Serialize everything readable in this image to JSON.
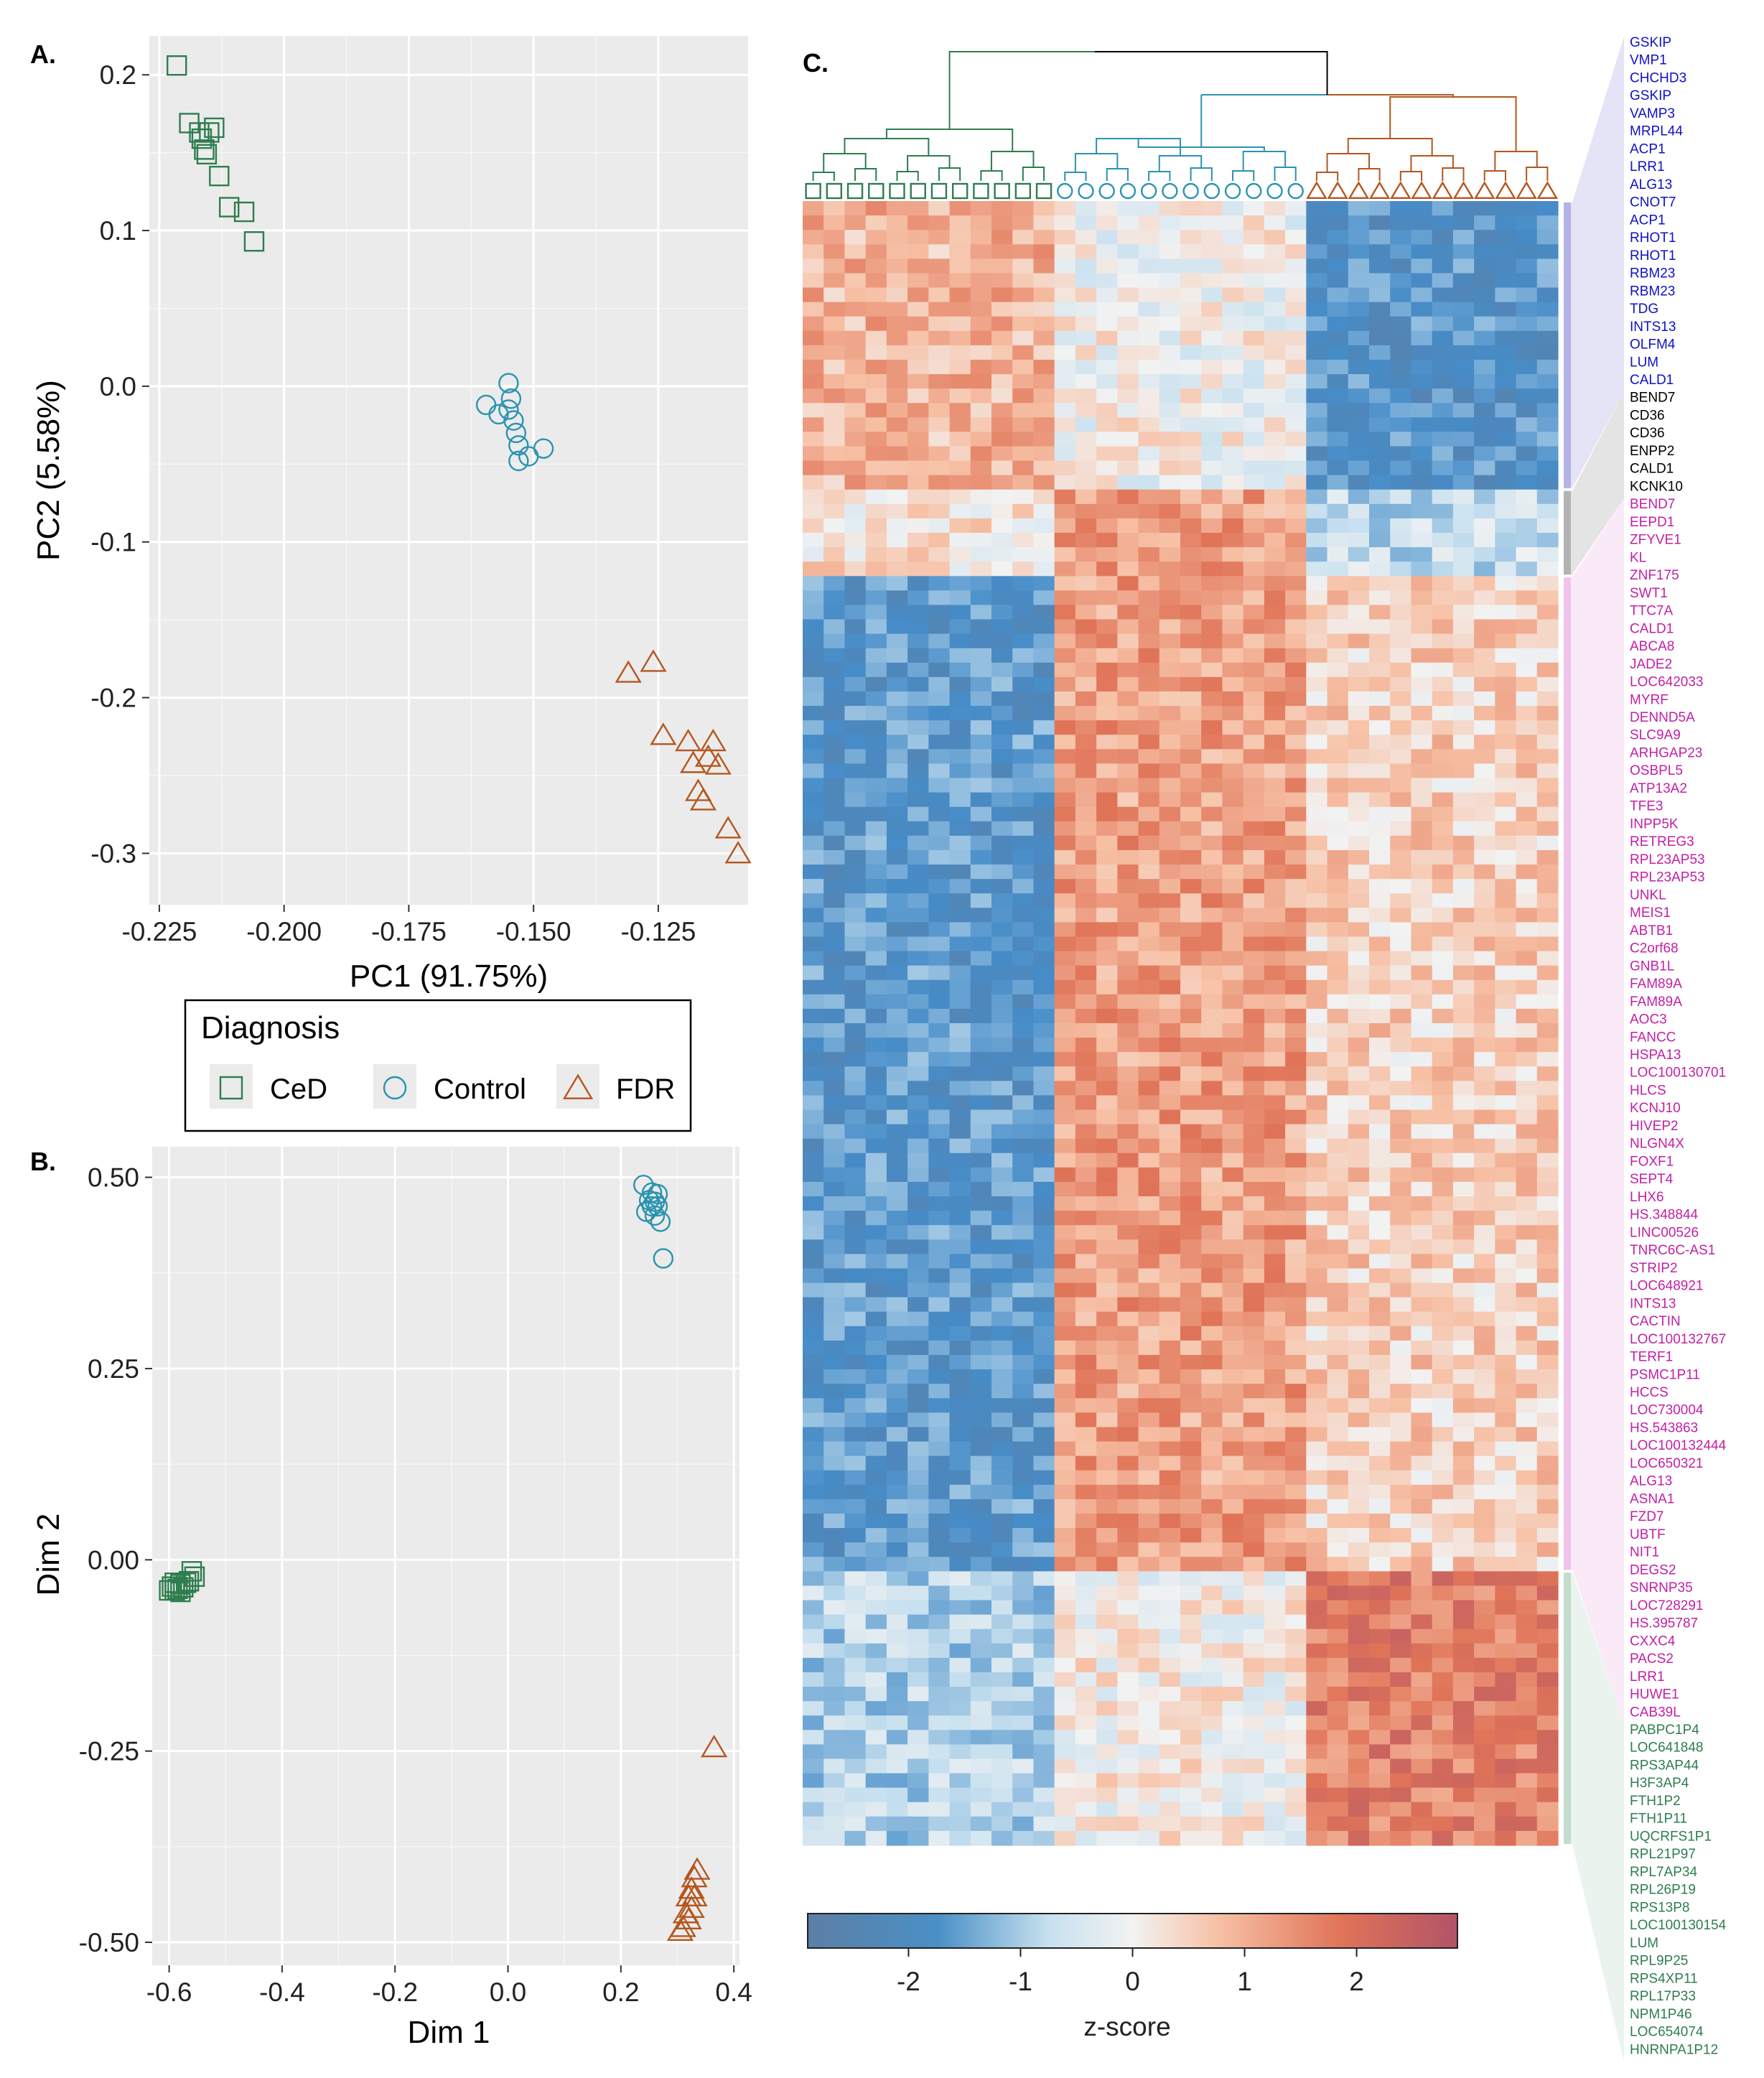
{
  "panels": {
    "A": "A.",
    "B": "B.",
    "C": "C."
  },
  "legend": {
    "title": "Diagnosis",
    "items": [
      {
        "label": "CeD",
        "shape": "square",
        "color": "#2e7d4f"
      },
      {
        "label": "Control",
        "shape": "circle",
        "color": "#2a93b0"
      },
      {
        "label": "FDR",
        "shape": "triangle",
        "color": "#b5561e"
      }
    ]
  },
  "colors": {
    "CeD": "#2e7d4f",
    "Control": "#2a93b0",
    "FDR": "#b5561e",
    "panel_bg": "#ebebeb",
    "grid": "#ffffff"
  },
  "chart_data": [
    {
      "type": "scatter",
      "panel": "A.",
      "xlabel": "PC1 (91.75%)",
      "ylabel": "PC2 (5.58%)",
      "xlim": [
        -0.227,
        -0.107
      ],
      "ylim": [
        -0.333,
        0.225
      ],
      "xticks": [
        -0.225,
        -0.2,
        -0.175,
        -0.15,
        -0.125
      ],
      "xtick_labels": [
        "-0.225",
        "-0.200",
        "-0.175",
        "-0.150",
        "-0.125"
      ],
      "yticks": [
        0.2,
        0.1,
        0.0,
        -0.1,
        -0.2,
        -0.3
      ],
      "ytick_labels": [
        "0.2",
        "0.1",
        "0.0",
        "-0.1",
        "-0.2",
        "-0.3"
      ],
      "grid": true,
      "series": [
        {
          "group": "CeD",
          "x": [
            -0.2215,
            -0.219,
            -0.217,
            -0.2165,
            -0.216,
            -0.215,
            -0.2155,
            -0.214,
            -0.213,
            -0.211,
            -0.208,
            -0.206
          ],
          "y": [
            0.206,
            0.169,
            0.163,
            0.159,
            0.152,
            0.163,
            0.149,
            0.166,
            0.135,
            0.115,
            0.112,
            0.093
          ]
        },
        {
          "group": "Control",
          "x": [
            -0.1595,
            -0.157,
            -0.155,
            -0.1545,
            -0.155,
            -0.154,
            -0.1535,
            -0.153,
            -0.153,
            -0.151,
            -0.148
          ],
          "y": [
            -0.012,
            -0.018,
            -0.015,
            -0.008,
            0.002,
            -0.022,
            -0.03,
            -0.038,
            -0.048,
            -0.045,
            -0.04
          ]
        },
        {
          "group": "FDR",
          "x": [
            -0.131,
            -0.126,
            -0.124,
            -0.119,
            -0.118,
            -0.117,
            -0.116,
            -0.115,
            -0.114,
            -0.113,
            -0.111,
            -0.109
          ],
          "y": [
            -0.184,
            -0.177,
            -0.224,
            -0.228,
            -0.242,
            -0.26,
            -0.266,
            -0.238,
            -0.228,
            -0.243,
            -0.284,
            -0.3
          ]
        }
      ]
    },
    {
      "type": "scatter",
      "panel": "B.",
      "xlabel": "Dim 1",
      "ylabel": "Dim 2",
      "xlim": [
        -0.63,
        0.41
      ],
      "ylim": [
        -0.53,
        0.54
      ],
      "xticks": [
        -0.6,
        -0.4,
        -0.2,
        0.0,
        0.2,
        0.4
      ],
      "xtick_labels": [
        "-0.6",
        "-0.4",
        "-0.2",
        "0.0",
        "0.2",
        "0.4"
      ],
      "yticks": [
        0.5,
        0.25,
        0.0,
        -0.25,
        -0.5
      ],
      "ytick_labels": [
        "0.50",
        "0.25",
        "0.00",
        "-0.25",
        "-0.50"
      ],
      "grid": true,
      "series": [
        {
          "group": "CeD",
          "x": [
            -0.6,
            -0.595,
            -0.59,
            -0.585,
            -0.58,
            -0.575,
            -0.57,
            -0.565,
            -0.56,
            -0.555,
            -0.59,
            -0.58
          ],
          "y": [
            -0.04,
            -0.035,
            -0.04,
            -0.038,
            -0.032,
            -0.036,
            -0.03,
            -0.028,
            -0.015,
            -0.022,
            -0.03,
            -0.042
          ]
        },
        {
          "group": "Control",
          "x": [
            0.24,
            0.245,
            0.25,
            0.255,
            0.26,
            0.265,
            0.255,
            0.26,
            0.265,
            0.27,
            0.275
          ],
          "y": [
            0.49,
            0.455,
            0.47,
            0.48,
            0.468,
            0.478,
            0.462,
            0.45,
            0.462,
            0.442,
            0.394
          ]
        },
        {
          "group": "FDR",
          "x": [
            0.365,
            0.335,
            0.33,
            0.325,
            0.33,
            0.32,
            0.325,
            0.315,
            0.32,
            0.31,
            0.305
          ],
          "y": [
            -0.245,
            -0.405,
            -0.415,
            -0.43,
            -0.44,
            -0.44,
            -0.455,
            -0.462,
            -0.47,
            -0.48,
            -0.485
          ]
        }
      ]
    },
    {
      "type": "heatmap",
      "panel": "C.",
      "columns": {
        "CeD": 12,
        "Control": 12,
        "FDR": 12
      },
      "colorbar": {
        "label": "z-score",
        "range": [
          -2.9,
          2.9
        ],
        "ticks": [
          -2,
          -1,
          0,
          1,
          2
        ],
        "tick_labels": [
          "-2",
          "-1",
          "0",
          "1",
          "2"
        ]
      },
      "color_scale": [
        "#5c7fa5",
        "#4a90c6",
        "#c7e0ef",
        "#f2f2f2",
        "#f7c1a6",
        "#e07458",
        "#b25468"
      ],
      "clusters": [
        {
          "name": "blue",
          "color": "#1010c8",
          "bar_color": "#b3b3e6",
          "genes": [
            "GSKIP",
            "VMP1",
            "CHCHD3",
            "GSKIP",
            "VAMP3",
            "MRPL44",
            "ACP1",
            "LRR1",
            "ALG13",
            "CNOT7",
            "ACP1",
            "RHOT1",
            "RHOT1",
            "RBM23",
            "RBM23",
            "TDG",
            "INTS13",
            "OLFM4",
            "LUM",
            "CALD1"
          ],
          "pattern": {
            "CeD": 0.9,
            "Control": 0.0,
            "FDR": -1.8
          }
        },
        {
          "name": "black",
          "color": "#000000",
          "bar_color": "#b3b3b3",
          "genes": [
            "BEND7",
            "CD36",
            "CD36",
            "ENPP2",
            "CALD1",
            "KCNK10"
          ],
          "pattern": {
            "CeD": 0.3,
            "Control": 1.2,
            "FDR": -0.7
          }
        },
        {
          "name": "magenta",
          "color": "#c21fa5",
          "bar_color": "#f0c3ea",
          "genes": [
            "BEND7",
            "EEPD1",
            "ZFYVE1",
            "KL",
            "ZNF175",
            "SWT1",
            "TTC7A",
            "CALD1",
            "ABCA8",
            "JADE2",
            "LOC642033",
            "MYRF",
            "DENND5A",
            "SLC9A9",
            "ARHGAP23",
            "OSBPL5",
            "ATP13A2",
            "TFE3",
            "INPP5K",
            "RETREG3",
            "RPL23AP53",
            "RPL23AP53",
            "UNKL",
            "MEIS1",
            "ABTB1",
            "C2orf68",
            "GNB1L",
            "FAM89A",
            "FAM89A",
            "AOC3",
            "FANCC",
            "HSPA13",
            "LOC100130701",
            "HLCS",
            "KCNJ10",
            "HIVEP2",
            "NLGN4X",
            "FOXF1",
            "SEPT4",
            "LHX6",
            "HS.348844",
            "LINC00526",
            "TNRC6C-AS1",
            "STRIP2",
            "LOC648921",
            "INTS13",
            "CACTIN",
            "LOC100132767",
            "TERF1",
            "PSMC1P11",
            "HCCS",
            "LOC730004",
            "HS.543863",
            "LOC100132444",
            "LOC650321",
            "ALG13",
            "ASNA1",
            "FZD7",
            "UBTF",
            "NIT1",
            "DEGS2",
            "SNRNP35",
            "LOC728291",
            "HS.395787",
            "CXXC4",
            "PACS2",
            "LRR1",
            "HUWE1",
            "CAB39L"
          ],
          "pattern": {
            "CeD": -1.7,
            "Control": 1.2,
            "FDR": 0.5
          }
        },
        {
          "name": "green",
          "color": "#2e7d4f",
          "bar_color": "#c3dccd",
          "genes": [
            "PABPC1P4",
            "LOC641848",
            "RPS3AP44",
            "H3F3AP4",
            "FTH1P2",
            "FTH1P11",
            "UQCRFS1P1",
            "RPL21P97",
            "RPL7AP34",
            "RPL26P19",
            "RPS13P8",
            "LOC100130154",
            "LUM",
            "RPL9P25",
            "RPS4XP11",
            "RPL17P33",
            "NPM1P46",
            "LOC654074",
            "HNRNPA1P12"
          ],
          "pattern": {
            "CeD": -0.9,
            "Control": 0.1,
            "FDR": 1.7
          }
        }
      ]
    }
  ]
}
